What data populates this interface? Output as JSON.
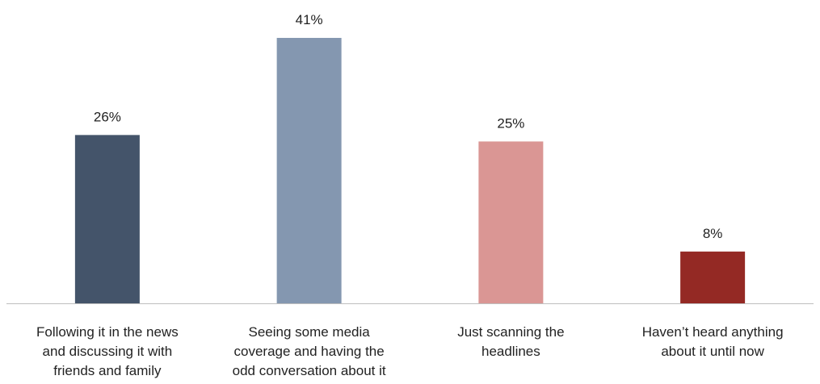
{
  "chart_data": {
    "type": "bar",
    "categories": [
      [
        "Following it in the news",
        "and discussing it with",
        "friends and family"
      ],
      [
        "Seeing some media",
        "coverage and having the",
        "odd conversation about it"
      ],
      [
        "Just scanning the",
        "headlines"
      ],
      [
        "Haven’t heard anything",
        "about it until now"
      ]
    ],
    "values": [
      26,
      41,
      25,
      8
    ],
    "value_labels": [
      "26%",
      "41%",
      "25%",
      "8%"
    ],
    "colors": [
      "#44546A",
      "#8497B0",
      "#DA9694",
      "#942924"
    ],
    "axis_color": "#BFBFBF",
    "ylim": [
      0,
      45
    ],
    "grid": false,
    "legend": "none"
  }
}
